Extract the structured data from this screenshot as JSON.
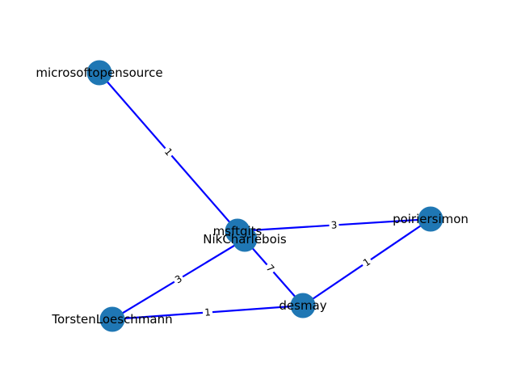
{
  "graph": {
    "node_color": "#1f77b4",
    "edge_color": "#0000ff",
    "nodes": [
      {
        "id": "microsoftopensource",
        "label": "microsoftopensource"
      },
      {
        "id": "msftgits",
        "label": "msftgits"
      },
      {
        "id": "NikCharlebois",
        "label": "NikCharlebois"
      },
      {
        "id": "poiriersimon",
        "label": "poiriersimon"
      },
      {
        "id": "desmay",
        "label": "desmay"
      },
      {
        "id": "TorstenLoeschmann",
        "label": "TorstenLoeschmann"
      }
    ],
    "edges": [
      {
        "source": "microsoftopensource",
        "target": "msftgits",
        "label": "1"
      },
      {
        "source": "msftgits",
        "target": "poiriersimon",
        "label": "3"
      },
      {
        "source": "msftgits",
        "target": "desmay",
        "label": "7"
      },
      {
        "source": "NikCharlebois",
        "target": "TorstenLoeschmann",
        "label": "3"
      },
      {
        "source": "TorstenLoeschmann",
        "target": "desmay",
        "label": "1"
      },
      {
        "source": "desmay",
        "target": "poiriersimon",
        "label": "1"
      }
    ]
  }
}
